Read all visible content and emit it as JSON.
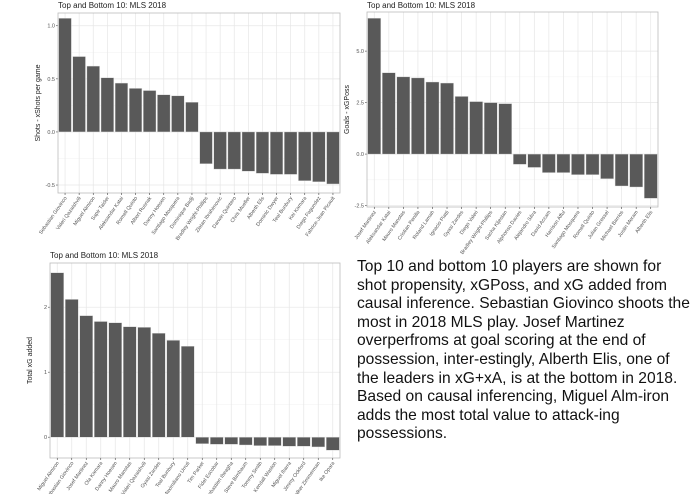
{
  "chart_data": [
    {
      "type": "bar",
      "title": "Top and Bottom 10: MLS 2018",
      "xlabel": "",
      "ylabel": "Shots - xShots per game",
      "ylim": [
        -0.575,
        1.12
      ],
      "yticks": [
        -0.5,
        0.0,
        0.5,
        1.0
      ],
      "ytick_labels": [
        "-0.5",
        "0.0",
        "0.5",
        "1.0"
      ],
      "grid": true,
      "bar_color": "#595959",
      "categories": [
        "Sebastian Giovinco",
        "Valeri Qazaishvili",
        "Miguel Almiron",
        "Sapir Taider",
        "Aleksandar Katai",
        "Romell Quioto",
        "Albert Rusnak",
        "Danny Hoesen",
        "Santiago Mosquera",
        "Dominique Badji",
        "Bradley Wright-Phillips",
        "Zlatan Ibrahimovic",
        "Darwin Quintero",
        "Chris Mueller",
        "Alberth Elis",
        "Dominic Dwyer",
        "Teal Bunbury",
        "Kei Kamara",
        "Diego Fagundez",
        "Fabrice-Jean Picault"
      ],
      "values": [
        1.07,
        0.71,
        0.62,
        0.51,
        0.46,
        0.41,
        0.39,
        0.35,
        0.34,
        0.28,
        -0.3,
        -0.35,
        -0.35,
        -0.37,
        -0.39,
        -0.4,
        -0.4,
        -0.46,
        -0.47,
        -0.49
      ]
    },
    {
      "type": "bar",
      "title": "Top and Bottom 10: MLS 2018",
      "xlabel": "",
      "ylabel": "Goals - xGPoss",
      "ylim": [
        -2.57,
        6.9
      ],
      "yticks": [
        -2.5,
        0.0,
        2.5,
        5.0
      ],
      "ytick_labels": [
        "-2.5",
        "0.0",
        "2.5",
        "5.0"
      ],
      "grid": true,
      "bar_color": "#595959",
      "categories": [
        "Josef Martinez",
        "Aleksandar Katai",
        "Mauro Manotas",
        "Cristian Penilla",
        "Roland Lamah",
        "Ignacio Piatti",
        "Gyasi Zardes",
        "Diego Valeri",
        "Bradley Wright-Phillips",
        "Sacha Kljestan",
        "Alphonso Davies",
        "Alejandro Silva",
        "David Accam",
        "Harrison Afful",
        "Santiago Mosquera",
        "Romell Quioto",
        "Julian Gressel",
        "Michael Barrios",
        "Justin Meram",
        "Alberth Elis"
      ],
      "values": [
        6.6,
        3.95,
        3.75,
        3.7,
        3.5,
        3.45,
        2.8,
        2.55,
        2.5,
        2.45,
        -0.5,
        -0.65,
        -0.9,
        -0.9,
        -1.0,
        -1.0,
        -1.2,
        -1.55,
        -1.6,
        -2.15
      ]
    },
    {
      "type": "bar",
      "title": "Top and Bottom 10: MLS 2018",
      "xlabel": "",
      "ylabel": "Total xG added",
      "ylim": [
        -0.32,
        2.68
      ],
      "yticks": [
        0,
        1,
        2
      ],
      "ytick_labels": [
        "0",
        "1",
        "2"
      ],
      "grid": true,
      "bar_color": "#595959",
      "categories": [
        "Miguel Almiron",
        "Sebastian Giovinco",
        "Josef Martinez",
        "Ola Kamara",
        "Danny Hoesen",
        "Mauro Manotas",
        "Valeri Qazaishvili",
        "Gyasi Zardes",
        "Teal Bunbury",
        "Maximiliano Urruti",
        "Tim Parker",
        "Fidel Escobar",
        "Sebastien Ibeagha",
        "Steve Birnbaum",
        "Tommy Smith",
        "Kendall Waston",
        "Miguel Ibarra",
        "Jimmy Ockford",
        "Walker Zimmerman",
        "Ike Opara"
      ],
      "values": [
        2.53,
        2.12,
        1.87,
        1.78,
        1.76,
        1.7,
        1.69,
        1.6,
        1.49,
        1.4,
        -0.1,
        -0.11,
        -0.11,
        -0.12,
        -0.13,
        -0.13,
        -0.14,
        -0.14,
        -0.15,
        -0.2
      ]
    }
  ],
  "caption": "Top 10 and bottom 10 players are shown for shot propensity, xGPoss, and xG added from causal inference. Sebastian Giovinco shoots the most in 2018 MLS play. Josef Martinez overperfroms at goal scoring at the end of possession, inter-estingly, Alberth Elis, one of the leaders in xG+xA, is at the bottom in 2018. Based on causal inferencing, Miguel Alm-iron adds the most total value to attack-ing possessions."
}
